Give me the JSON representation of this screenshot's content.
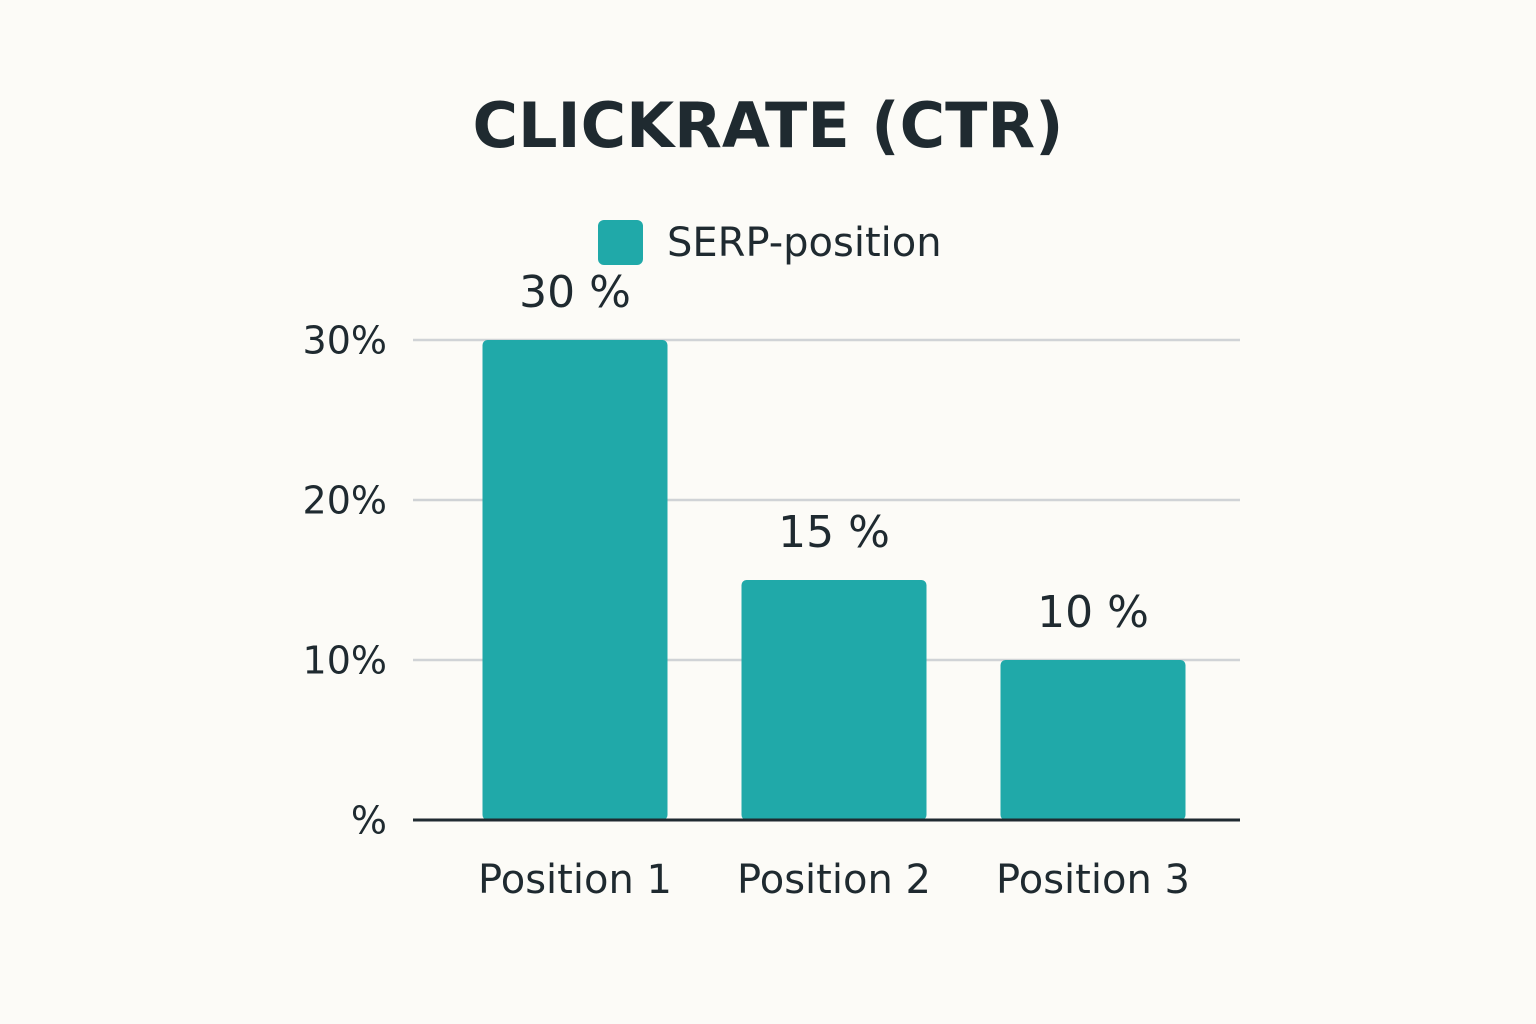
{
  "chart_data": {
    "type": "bar",
    "title": "CLICKRATE (CTR)",
    "categories": [
      "Position 1",
      "Position 2",
      "Position 3"
    ],
    "series": [
      {
        "name": "SERP-position",
        "color": "#20a9a9",
        "values": [
          30,
          15,
          10
        ],
        "value_labels": [
          "30 %",
          "15 %",
          "10 %"
        ]
      }
    ],
    "ylim": [
      0,
      30
    ],
    "yticks": [
      {
        "value": 0,
        "label": "%"
      },
      {
        "value": 10,
        "label": "10%"
      },
      {
        "value": 20,
        "label": "20%"
      },
      {
        "value": 30,
        "label": "30%"
      }
    ],
    "grid": true,
    "legend": "top"
  }
}
